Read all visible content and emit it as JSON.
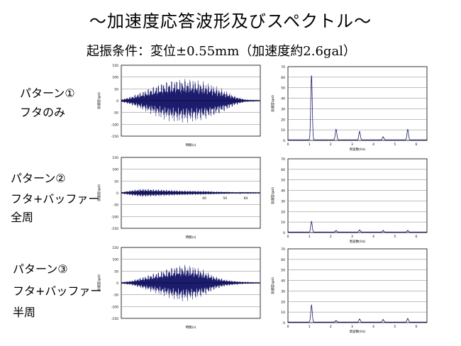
{
  "title": "～加速度応答波形及びスペクトル～",
  "subtitle": "起振条件：変位±0.55mm（加速度約2.6gal）",
  "rows": [
    {
      "pattern": "パターン①",
      "desc": [
        "フタのみ"
      ]
    },
    {
      "pattern": "パターン②",
      "desc": [
        "フタ+バッファー",
        "全周"
      ]
    },
    {
      "pattern": "パターン③",
      "desc": [
        "フタ+バッファー",
        "半周"
      ]
    }
  ],
  "colors": {
    "trace": "#1c1c6e",
    "axis": "#000000",
    "grid": "#7f7f7f"
  },
  "chart_data": [
    {
      "type": "line",
      "panel": "pattern1-waveform",
      "xlabel": "時間(s)",
      "ylabel": "加速度(gal)",
      "xticks": [],
      "yticks": [
        -150,
        -100,
        -50,
        0,
        50,
        100,
        150
      ],
      "ylim": [
        -150,
        150
      ],
      "xlim": [
        0,
        67
      ],
      "envelope": {
        "x": [
          0,
          5,
          10,
          15,
          20,
          25,
          30,
          35,
          40,
          45,
          50,
          55,
          60,
          67
        ],
        "y": [
          5,
          20,
          40,
          60,
          80,
          90,
          95,
          92,
          82,
          65,
          45,
          20,
          5,
          2
        ]
      }
    },
    {
      "type": "line",
      "panel": "pattern1-spectrum",
      "xlabel": "周波数(Hz)",
      "ylabel": "加速度(gal)",
      "xticks": [
        0,
        1,
        2,
        3,
        4,
        5,
        6
      ],
      "yticks": [
        0,
        10,
        20,
        30,
        40,
        50,
        60,
        70
      ],
      "ylim": [
        0,
        70
      ],
      "xlim": [
        0,
        6.5
      ],
      "peaks": {
        "x": [
          1.1,
          2.25,
          3.35,
          4.45,
          5.6
        ],
        "y": [
          61,
          10,
          8,
          3,
          10
        ]
      }
    },
    {
      "type": "line",
      "panel": "pattern2-waveform",
      "xlabel": "時間(s)",
      "ylabel": "加速度(gal)",
      "xticks": [
        40,
        50,
        60
      ],
      "yticks": [
        -150,
        -100,
        -50,
        0,
        50,
        100,
        150
      ],
      "ylim": [
        -150,
        150
      ],
      "xlim": [
        0,
        67
      ],
      "envelope": {
        "x": [
          0,
          5,
          10,
          15,
          20,
          25,
          30,
          35,
          40,
          45,
          50,
          55,
          60,
          67
        ],
        "y": [
          3,
          12,
          18,
          16,
          14,
          12,
          10,
          9,
          8,
          6,
          5,
          3,
          3,
          2
        ]
      }
    },
    {
      "type": "line",
      "panel": "pattern2-spectrum",
      "xlabel": "周波数(Hz)",
      "ylabel": "加速度(gal)",
      "xticks": [
        0,
        1,
        2,
        3,
        4,
        5,
        6
      ],
      "yticks": [
        0,
        10,
        20,
        30,
        40,
        50,
        60,
        70
      ],
      "ylim": [
        0,
        70
      ],
      "xlim": [
        0,
        6.5
      ],
      "peaks": {
        "x": [
          1.1,
          2.25,
          3.35,
          4.45,
          5.6
        ],
        "y": [
          10,
          1.5,
          2,
          1.5,
          1.5
        ]
      }
    },
    {
      "type": "line",
      "panel": "pattern3-waveform",
      "xlabel": "時間(s)",
      "ylabel": "加速度(gal)",
      "xticks": [],
      "yticks": [
        -150,
        -100,
        -50,
        0,
        50,
        100,
        150
      ],
      "ylim": [
        -150,
        150
      ],
      "xlim": [
        0,
        67
      ],
      "envelope": {
        "x": [
          0,
          5,
          10,
          15,
          20,
          25,
          30,
          35,
          40,
          45,
          50,
          55,
          60,
          67
        ],
        "y": [
          3,
          10,
          25,
          40,
          55,
          70,
          80,
          72,
          55,
          30,
          15,
          8,
          4,
          2
        ]
      }
    },
    {
      "type": "line",
      "panel": "pattern3-spectrum",
      "xlabel": "周波数(Hz)",
      "ylabel": "加速度(gal)",
      "xticks": [
        0,
        1,
        2,
        3,
        4,
        5,
        6
      ],
      "yticks": [
        0,
        10,
        20,
        30,
        40,
        50,
        60,
        70
      ],
      "ylim": [
        0,
        70
      ],
      "xlim": [
        0,
        6.5
      ],
      "peaks": {
        "x": [
          1.1,
          2.25,
          3.35,
          4.45,
          5.6
        ],
        "y": [
          16,
          1.5,
          3,
          2.5,
          3.5
        ]
      }
    }
  ]
}
